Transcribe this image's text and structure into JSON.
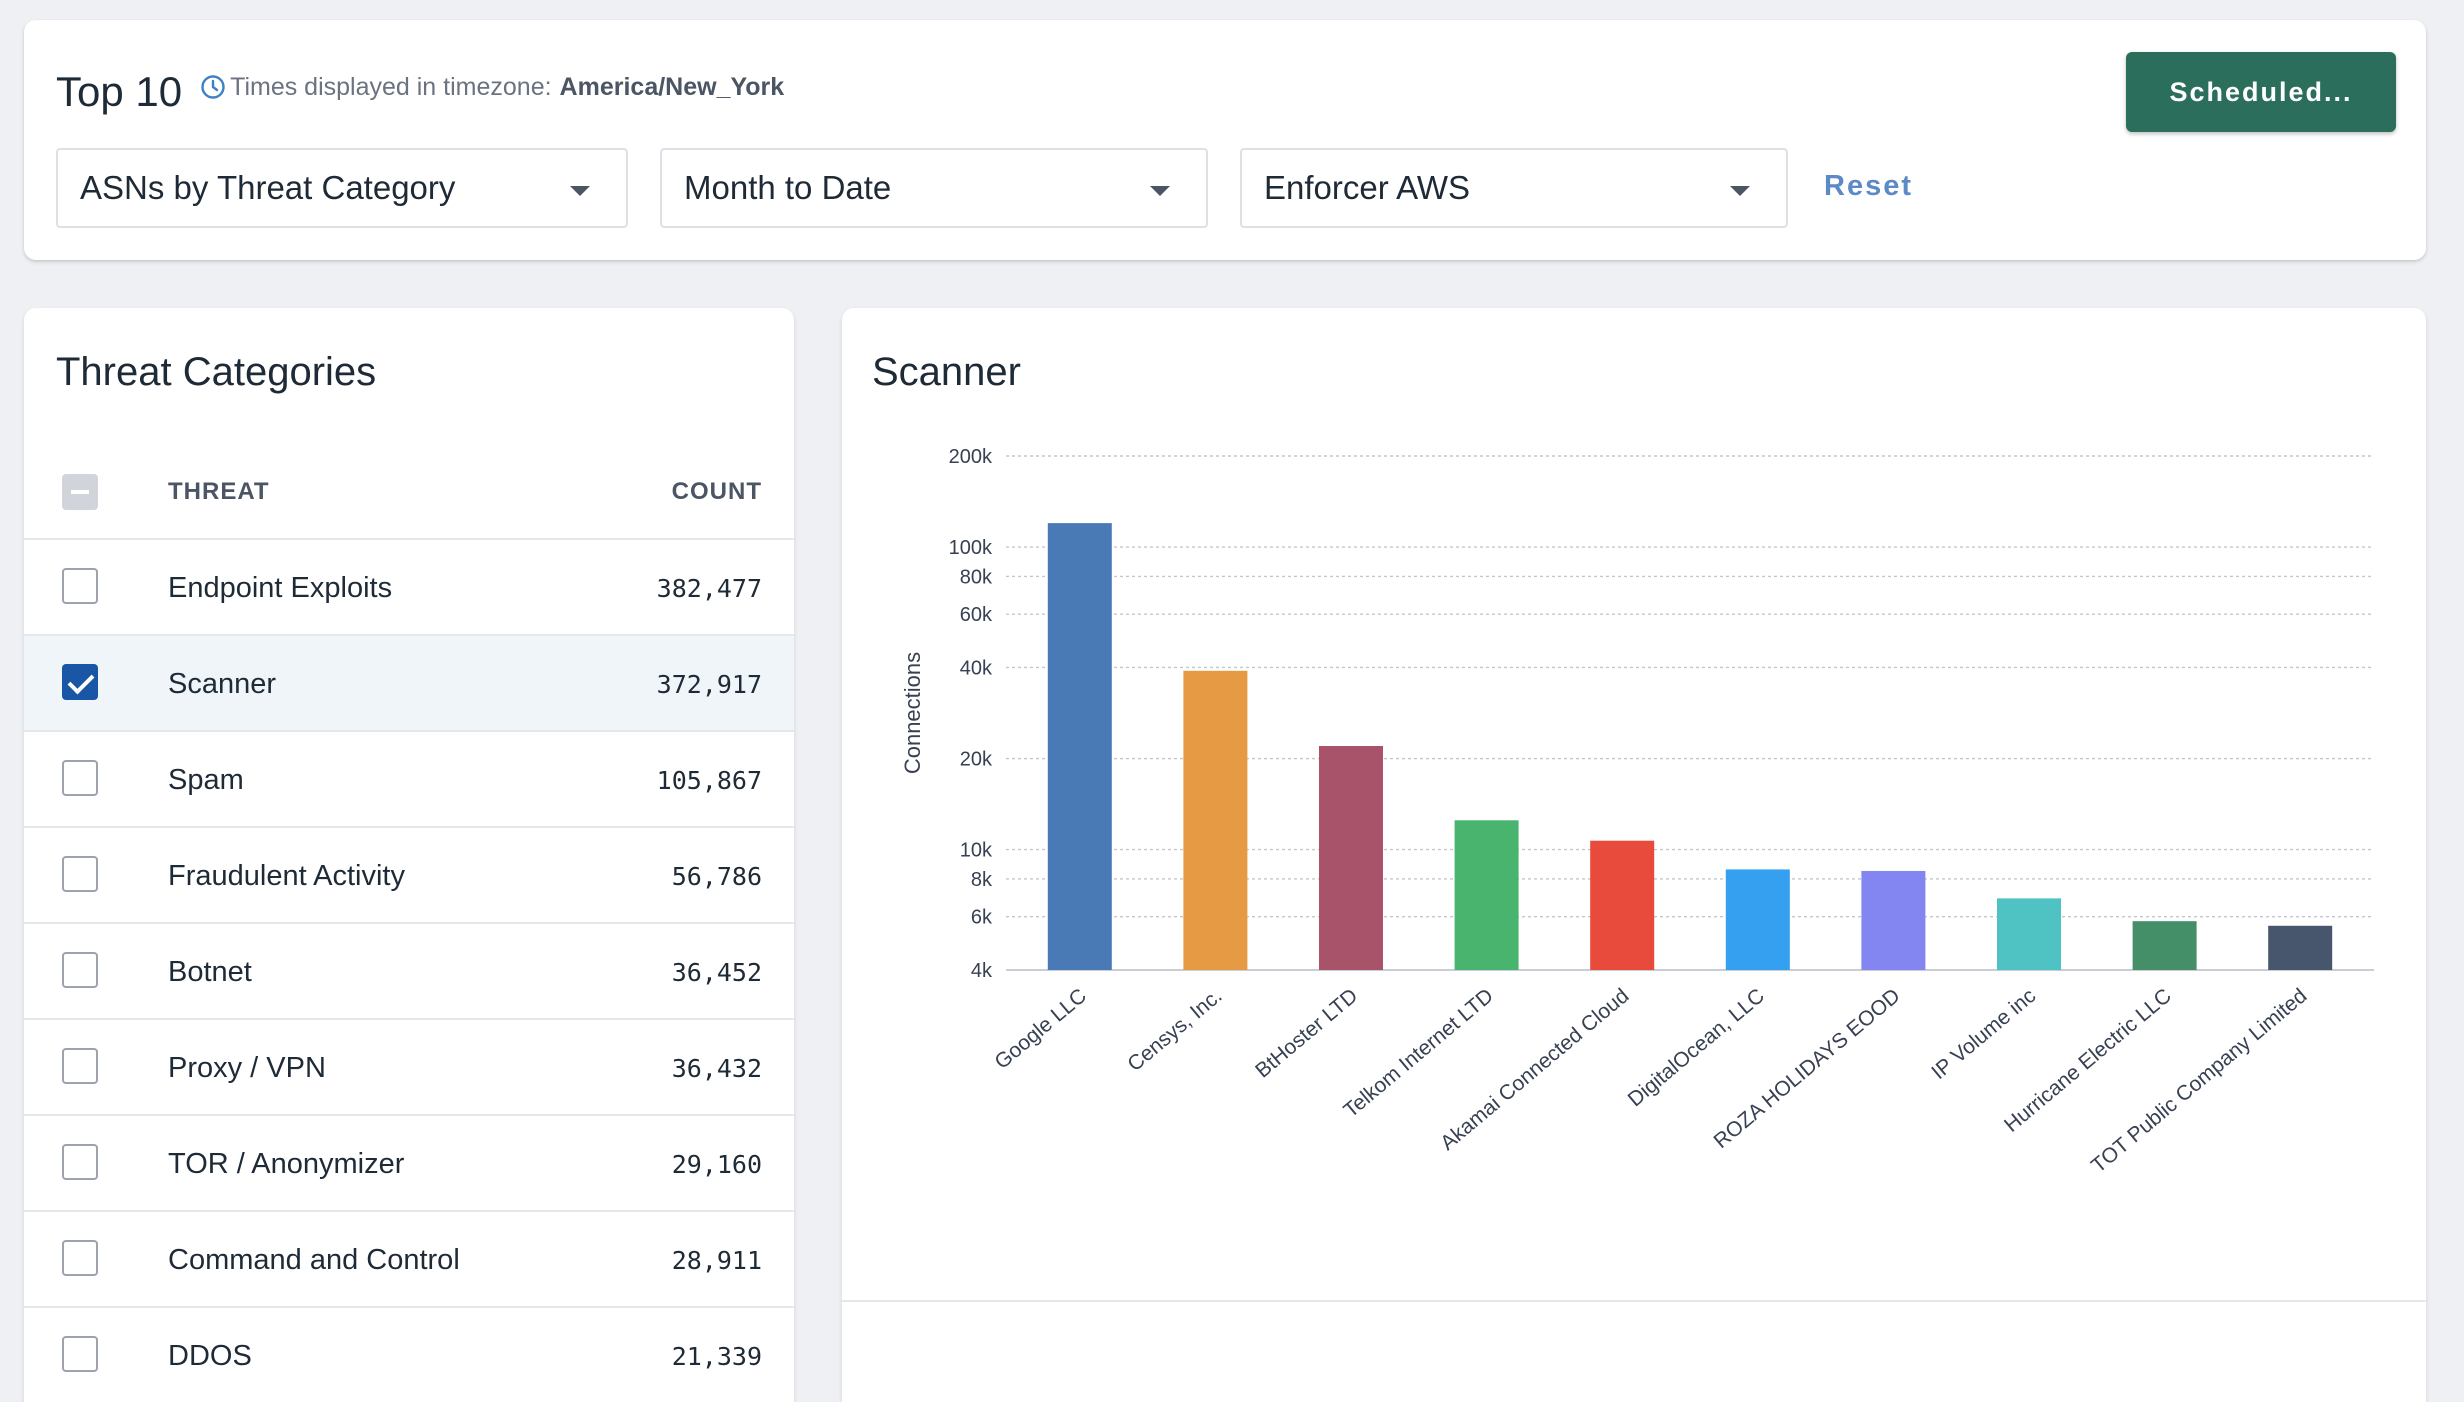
{
  "header": {
    "title": "Top 10",
    "timezone_prefix": "Times displayed in timezone:",
    "timezone": "America/New_York",
    "scheduled_label": "Scheduled...",
    "reset_label": "Reset",
    "report_select": "ASNs by Threat Category",
    "period_select": "Month to Date",
    "enforcer_select": "Enforcer AWS"
  },
  "threats": {
    "title": "Threat Categories",
    "col_threat": "THREAT",
    "col_count": "COUNT",
    "rows": [
      {
        "name": "Endpoint Exploits",
        "count": "382,477",
        "checked": false
      },
      {
        "name": "Scanner",
        "count": "372,917",
        "checked": true
      },
      {
        "name": "Spam",
        "count": "105,867",
        "checked": false
      },
      {
        "name": "Fraudulent Activity",
        "count": "56,786",
        "checked": false
      },
      {
        "name": "Botnet",
        "count": "36,452",
        "checked": false
      },
      {
        "name": "Proxy / VPN",
        "count": "36,432",
        "checked": false
      },
      {
        "name": "TOR / Anonymizer",
        "count": "29,160",
        "checked": false
      },
      {
        "name": "Command and Control",
        "count": "28,911",
        "checked": false
      },
      {
        "name": "DDOS",
        "count": "21,339",
        "checked": false
      }
    ]
  },
  "chart_data": {
    "type": "bar",
    "title": "Scanner",
    "ylabel": "Connections",
    "xlabel": "",
    "yscale": "log",
    "ylim": [
      4000,
      200000
    ],
    "grid": true,
    "yticks": [
      {
        "value": 200000,
        "label": "200k"
      },
      {
        "value": 100000,
        "label": "100k"
      },
      {
        "value": 80000,
        "label": "80k"
      },
      {
        "value": 60000,
        "label": "60k"
      },
      {
        "value": 40000,
        "label": "40k"
      },
      {
        "value": 20000,
        "label": "20k"
      },
      {
        "value": 10000,
        "label": "10k"
      },
      {
        "value": 8000,
        "label": "8k"
      },
      {
        "value": 6000,
        "label": "6k"
      },
      {
        "value": 4000,
        "label": "4k"
      }
    ],
    "categories": [
      "Google LLC",
      "Censys, Inc.",
      "BtHoster LTD",
      "Telkom Internet LTD",
      "Akamai Connected Cloud",
      "DigitalOcean, LLC",
      "ROZA HOLIDAYS EOOD",
      "IP Volume inc",
      "Hurricane Electric LLC",
      "TOT Public Company Limited"
    ],
    "values": [
      120000,
      39000,
      22000,
      12500,
      10700,
      8600,
      8500,
      6900,
      5800,
      5600
    ],
    "colors": [
      "#4a7ab5",
      "#e69a44",
      "#a9536b",
      "#48b46e",
      "#e84a3c",
      "#359ff0",
      "#8386f0",
      "#4fc2c4",
      "#458f68",
      "#47556d"
    ]
  }
}
